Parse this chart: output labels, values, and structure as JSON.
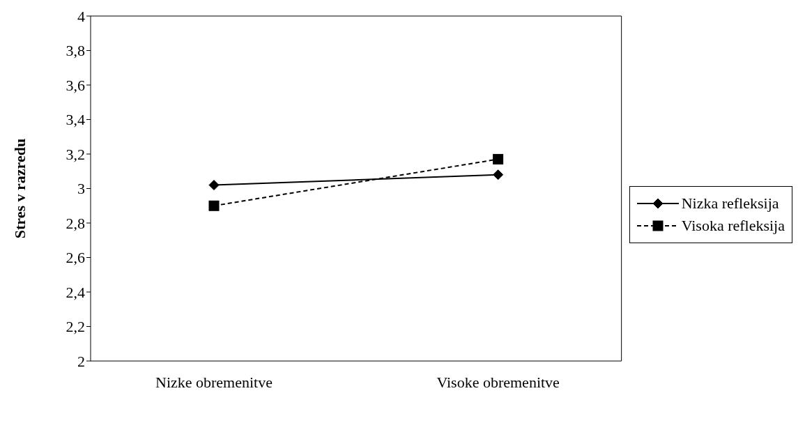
{
  "chart_data": {
    "type": "line",
    "ylabel": "Stres v razredu",
    "categories": [
      "Nizke obremenitve",
      "Visoke obremenitve"
    ],
    "series": [
      {
        "name": "Nizka refleksija",
        "color": "#000000",
        "values": [
          3.02,
          3.08
        ],
        "marker": "diamond",
        "line_style": "solid"
      },
      {
        "name": "Visoka refleksija",
        "color": "#000000",
        "values": [
          2.9,
          3.17
        ],
        "marker": "square",
        "line_style": "dashed"
      }
    ],
    "ylim": [
      2,
      4
    ],
    "yticks": [
      2,
      {
        "value": 2.2,
        "label": "2,2"
      },
      {
        "value": 2.4,
        "label": "2,4"
      },
      {
        "value": 2.6,
        "label": "2,6"
      },
      {
        "value": 2.8,
        "label": "2,8"
      },
      3,
      {
        "value": 3.2,
        "label": "3,2"
      },
      {
        "value": 3.4,
        "label": "3,4"
      },
      {
        "value": 3.6,
        "label": "3,6"
      },
      {
        "value": 3.8,
        "label": "3,8"
      },
      4
    ],
    "grid": false,
    "legend": "right"
  }
}
